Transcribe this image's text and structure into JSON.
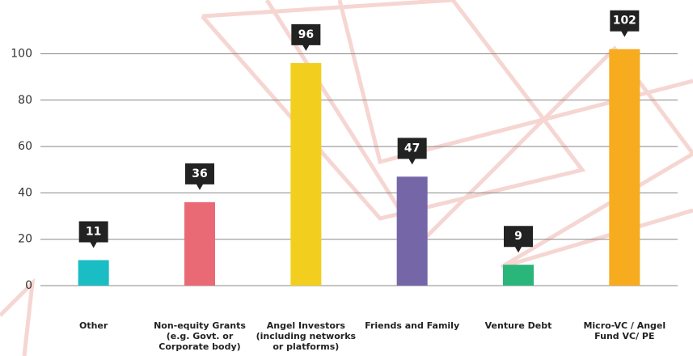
{
  "chart_data": {
    "type": "bar",
    "categories": [
      "Other",
      "Non-equity Grants (e.g. Govt. or Corporate body)",
      "Angel Investors (including networks or platforms)",
      "Friends and Family",
      "Venture Debt",
      "Micro-VC /  Angel Fund VC/ PE"
    ],
    "values": [
      11,
      36,
      96,
      47,
      9,
      102
    ],
    "colors": [
      "#1bbdc4",
      "#e96a75",
      "#f2cf1f",
      "#7566a8",
      "#2ab57a",
      "#f7ab1f"
    ],
    "ylim": [
      0,
      104
    ],
    "yticks": [
      0,
      20,
      40,
      60,
      80,
      100
    ],
    "grid": true
  }
}
